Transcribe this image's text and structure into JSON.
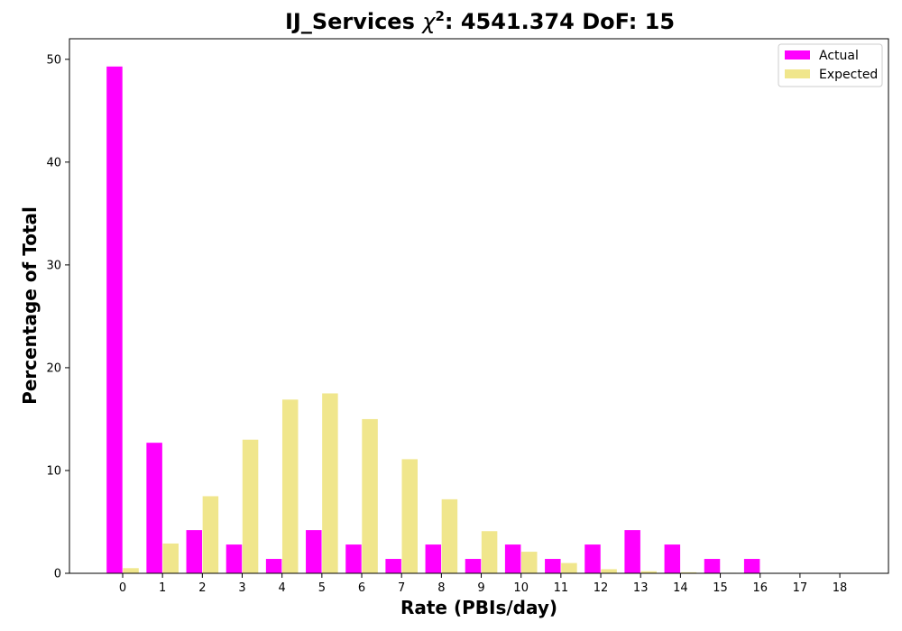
{
  "chart_data": {
    "type": "bar",
    "title": {
      "prefix": "IJ_Services ",
      "chi": "χ",
      "sup": "2",
      "suffix": ": 4541.374 DoF: 15"
    },
    "xlabel": "Rate (PBIs/day)",
    "ylabel": "Percentage of Total",
    "categories": [
      "0",
      "1",
      "2",
      "3",
      "4",
      "5",
      "6",
      "7",
      "8",
      "9",
      "10",
      "11",
      "12",
      "13",
      "14",
      "15",
      "16",
      "17",
      "18"
    ],
    "ylim": [
      0,
      52
    ],
    "yticks": [
      0,
      10,
      20,
      30,
      40,
      50
    ],
    "legend_position": "top-right",
    "series": [
      {
        "name": "Actual",
        "color": "#ff00ff",
        "values": [
          49.3,
          12.7,
          4.2,
          2.8,
          1.4,
          4.2,
          2.8,
          1.4,
          2.8,
          1.4,
          2.8,
          1.4,
          2.8,
          4.2,
          2.8,
          1.4,
          1.4,
          0,
          0
        ]
      },
      {
        "name": "Expected",
        "color": "#f0e68c",
        "values": [
          0.5,
          2.9,
          7.5,
          13.0,
          16.9,
          17.5,
          15.0,
          11.1,
          7.2,
          4.1,
          2.1,
          1.0,
          0.4,
          0.2,
          0.1,
          0.05,
          0.02,
          0.01,
          0.0
        ]
      }
    ]
  }
}
